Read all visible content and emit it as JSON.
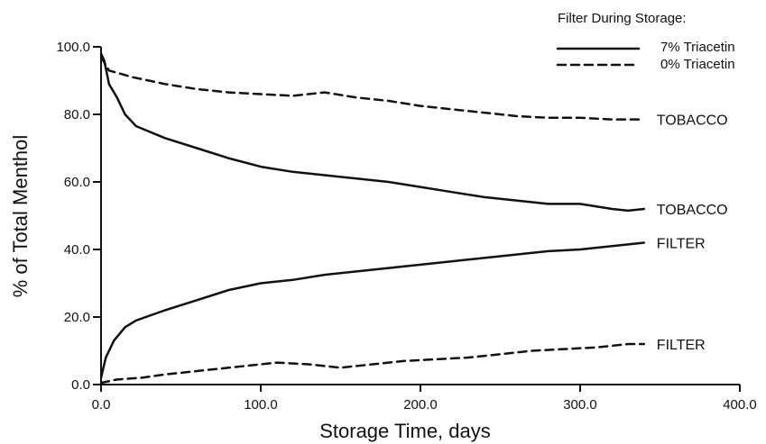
{
  "chart_data": {
    "type": "line",
    "xlabel": "Storage Time, days",
    "ylabel": "% of Total Menthol",
    "xlim": [
      0,
      400
    ],
    "ylim": [
      0,
      100
    ],
    "x_ticks": [
      {
        "value": 0,
        "label": "0.0"
      },
      {
        "value": 100,
        "label": "100.0"
      },
      {
        "value": 200,
        "label": "200.0"
      },
      {
        "value": 300,
        "label": "300.0"
      },
      {
        "value": 400,
        "label": "400.0"
      }
    ],
    "y_ticks": [
      {
        "value": 0,
        "label": "0.0"
      },
      {
        "value": 20,
        "label": "20.0"
      },
      {
        "value": 40,
        "label": "40.0"
      },
      {
        "value": 60,
        "label": "60.0"
      },
      {
        "value": 80,
        "label": "80.0"
      },
      {
        "value": 100,
        "label": "100.0"
      }
    ],
    "legend": {
      "title": "Filter During Storage:",
      "placement": "top-right",
      "entries": [
        {
          "label": "7% Triacetin",
          "style": "solid"
        },
        {
          "label": "0% Triacetin",
          "style": "dashed"
        }
      ]
    },
    "grid": false,
    "series": [
      {
        "label": "TOBACCO",
        "style": "solid",
        "points": [
          [
            0,
            98
          ],
          [
            2,
            96
          ],
          [
            5,
            89
          ],
          [
            10,
            85
          ],
          [
            15,
            80
          ],
          [
            22,
            76.5
          ],
          [
            40,
            73
          ],
          [
            60,
            70
          ],
          [
            80,
            67
          ],
          [
            100,
            64.5
          ],
          [
            120,
            63
          ],
          [
            140,
            62
          ],
          [
            160,
            61
          ],
          [
            180,
            60
          ],
          [
            200,
            58.5
          ],
          [
            220,
            57
          ],
          [
            240,
            55.5
          ],
          [
            260,
            54.5
          ],
          [
            280,
            53.5
          ],
          [
            300,
            53.5
          ],
          [
            320,
            52
          ],
          [
            330,
            51.5
          ],
          [
            340,
            52
          ]
        ]
      },
      {
        "label": "FILTER",
        "style": "solid",
        "points": [
          [
            0,
            2
          ],
          [
            3,
            8
          ],
          [
            8,
            13
          ],
          [
            15,
            17
          ],
          [
            22,
            19
          ],
          [
            40,
            22
          ],
          [
            60,
            25
          ],
          [
            80,
            28
          ],
          [
            100,
            30
          ],
          [
            120,
            31
          ],
          [
            140,
            32.5
          ],
          [
            160,
            33.5
          ],
          [
            180,
            34.5
          ],
          [
            200,
            35.5
          ],
          [
            220,
            36.5
          ],
          [
            240,
            37.5
          ],
          [
            260,
            38.5
          ],
          [
            280,
            39.5
          ],
          [
            300,
            40
          ],
          [
            320,
            41
          ],
          [
            340,
            42
          ]
        ]
      },
      {
        "label": "TOBACCO",
        "style": "dashed",
        "points": [
          [
            0,
            97
          ],
          [
            5,
            93
          ],
          [
            20,
            91
          ],
          [
            40,
            89
          ],
          [
            60,
            87.5
          ],
          [
            80,
            86.5
          ],
          [
            100,
            86
          ],
          [
            120,
            85.5
          ],
          [
            140,
            86.5
          ],
          [
            160,
            85
          ],
          [
            180,
            84
          ],
          [
            200,
            82.5
          ],
          [
            220,
            81.5
          ],
          [
            240,
            80.5
          ],
          [
            260,
            79.5
          ],
          [
            280,
            79
          ],
          [
            300,
            79
          ],
          [
            320,
            78.5
          ],
          [
            340,
            78.5
          ]
        ]
      },
      {
        "label": "FILTER",
        "style": "dashed",
        "points": [
          [
            0,
            0.5
          ],
          [
            10,
            1.5
          ],
          [
            25,
            2
          ],
          [
            40,
            3
          ],
          [
            60,
            4
          ],
          [
            80,
            5
          ],
          [
            100,
            6
          ],
          [
            110,
            6.5
          ],
          [
            130,
            6
          ],
          [
            150,
            5
          ],
          [
            170,
            6
          ],
          [
            190,
            7
          ],
          [
            210,
            7.5
          ],
          [
            230,
            8
          ],
          [
            250,
            9
          ],
          [
            270,
            10
          ],
          [
            290,
            10.5
          ],
          [
            310,
            11
          ],
          [
            330,
            12
          ],
          [
            340,
            12
          ]
        ]
      }
    ]
  }
}
